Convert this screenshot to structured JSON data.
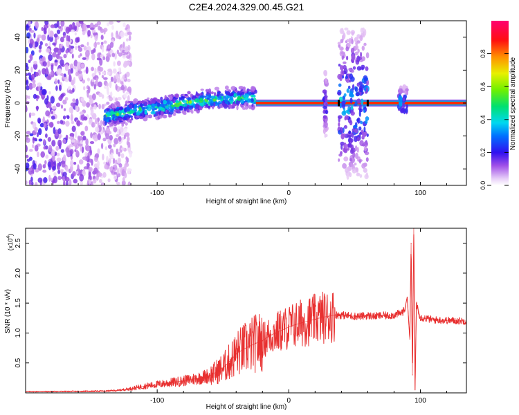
{
  "title": "C2E4.2024.329.00.45.G21",
  "chart_data": [
    {
      "type": "heatmap",
      "title": "C2E4.2024.329.00.45.G21",
      "xlabel": "Height of straight line (km)",
      "ylabel": "Frequency (Hz)",
      "xlim": [
        -200,
        135
      ],
      "ylim": [
        -50,
        50
      ],
      "xticks": [
        -100,
        0,
        100
      ],
      "yticks": [
        -40,
        -20,
        0,
        20,
        40
      ],
      "colorbar": {
        "label": "Normalized spectral amplitude",
        "range": [
          0,
          1
        ],
        "ticks": [
          "0.0",
          "0.2",
          "0.4",
          "0.6",
          "0.8"
        ],
        "colors": [
          "#ffffff",
          "#d8a8f0",
          "#9040e0",
          "#3018f0",
          "#0080ff",
          "#00e0e0",
          "#00e060",
          "#a0f000",
          "#f0f000",
          "#ff9000",
          "#ff2000",
          "#ff0060"
        ]
      },
      "features": [
        {
          "name": "scattered noise",
          "x_range": [
            -200,
            -120
          ],
          "freq_range": [
            -50,
            50
          ],
          "amplitude": 0.25
        },
        {
          "name": "rising signal trace",
          "x": [
            -140,
            -120,
            -100,
            -80,
            -60,
            -40,
            -25
          ],
          "freq": [
            -8,
            -5,
            -3,
            0,
            2,
            3,
            3
          ],
          "amplitude": 0.55
        },
        {
          "name": "steady carrier",
          "x_range": [
            -25,
            135
          ],
          "freq": 0,
          "amplitude": 1.0
        },
        {
          "name": "noise burst",
          "x_range": [
            38,
            60
          ],
          "freq_range": [
            -45,
            45
          ],
          "amplitude": 0.3
        },
        {
          "name": "narrow burst",
          "x_range": [
            27,
            29
          ],
          "freq_range": [
            -20,
            20
          ],
          "amplitude": 0.2
        },
        {
          "name": "small burst",
          "x_range": [
            84,
            90
          ],
          "freq_range": [
            -5,
            10
          ],
          "amplitude": 0.3
        }
      ]
    },
    {
      "type": "line",
      "xlabel": "Height of straight line (km)",
      "ylabel": "SNR (10 * v/v)",
      "yscale_label": "(x10",
      "yscale_exp": "4",
      "xlim": [
        -200,
        135
      ],
      "ylim": [
        0,
        27500
      ],
      "xticks": [
        -100,
        0,
        100
      ],
      "yticks": [
        "0.5",
        "1.0",
        "1.5",
        "2.0",
        "2.5"
      ],
      "color": "#e83030",
      "series": [
        {
          "x": [
            -200,
            -160,
            -140,
            -130,
            -120,
            -110,
            -100,
            -90,
            -80,
            -70,
            -60,
            -55,
            -50,
            -45,
            -40,
            -35,
            -30,
            -25,
            -20,
            -15,
            -10,
            -5,
            0,
            5,
            10,
            15,
            20,
            25,
            30,
            35,
            40,
            45,
            50,
            55,
            60,
            65,
            70,
            75,
            80,
            85,
            88,
            90,
            92,
            93,
            94,
            95,
            96,
            97,
            100,
            110,
            120,
            135
          ],
          "values": [
            200,
            250,
            300,
            400,
            700,
            1100,
            1400,
            1700,
            2000,
            2400,
            2900,
            3500,
            4200,
            5200,
            6500,
            7200,
            7800,
            8300,
            8700,
            9500,
            10000,
            10500,
            11000,
            11400,
            11700,
            12000,
            12300,
            12600,
            12800,
            13000,
            13000,
            12900,
            12800,
            12800,
            12900,
            12800,
            12900,
            12900,
            13000,
            13300,
            13800,
            16000,
            9000,
            25000,
            3000,
            27500,
            500,
            15000,
            12600,
            12200,
            12100,
            12000
          ]
        }
      ]
    }
  ]
}
